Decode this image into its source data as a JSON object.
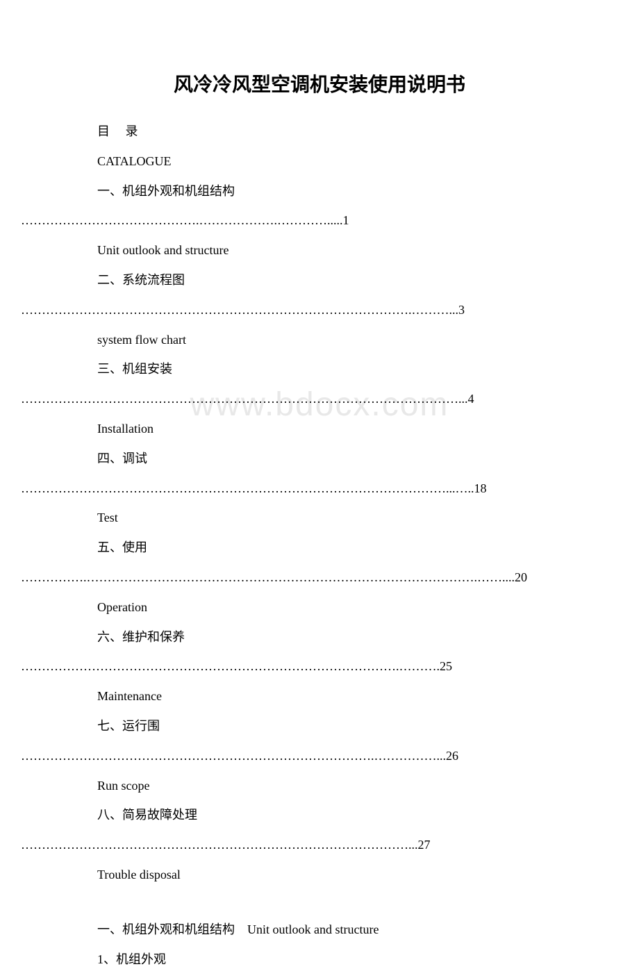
{
  "title": "风冷冷风型空调机安装使用说明书",
  "watermark": "www.bdocx.com",
  "toc_header_cn": "目",
  "toc_header_cn2": "录",
  "toc_header_en": "CATALOGUE",
  "items": [
    {
      "cn": "一、机组外观和机组结构",
      "dots": "…………………………………….……………….………….....1",
      "en": "Unit outlook and structure"
    },
    {
      "cn": "二、系统流程图",
      "dots": "………………………………………………………………………………….………...3",
      "en": "system flow chart"
    },
    {
      "cn": "三、机组安装",
      "dots": "……………………………………………………………………………………………...4",
      "en": "Installation"
    },
    {
      "cn": "四、调试",
      "dots": "…………………………………………………………………………………………...…..18",
      "en": "Test"
    },
    {
      "cn": "五、使用",
      "dots": "…………….………………………………………………………………………………….……....20",
      "en": "Operation"
    },
    {
      "cn": "六、维护和保养",
      "dots": "……………………………………………………………………………….……….25",
      "en": "Maintenance"
    },
    {
      "cn": "七、运行围",
      "dots": "………………………………………………………………………….……………...26",
      "en": "Run scope"
    },
    {
      "cn": "八、简易故障处理",
      "dots": "…………………………………………………………………………………...27",
      "en": "Trouble disposal"
    }
  ],
  "section1_label": "一、机组外观和机组结构　Unit outlook and structure",
  "section1_sub": "1、机组外观"
}
